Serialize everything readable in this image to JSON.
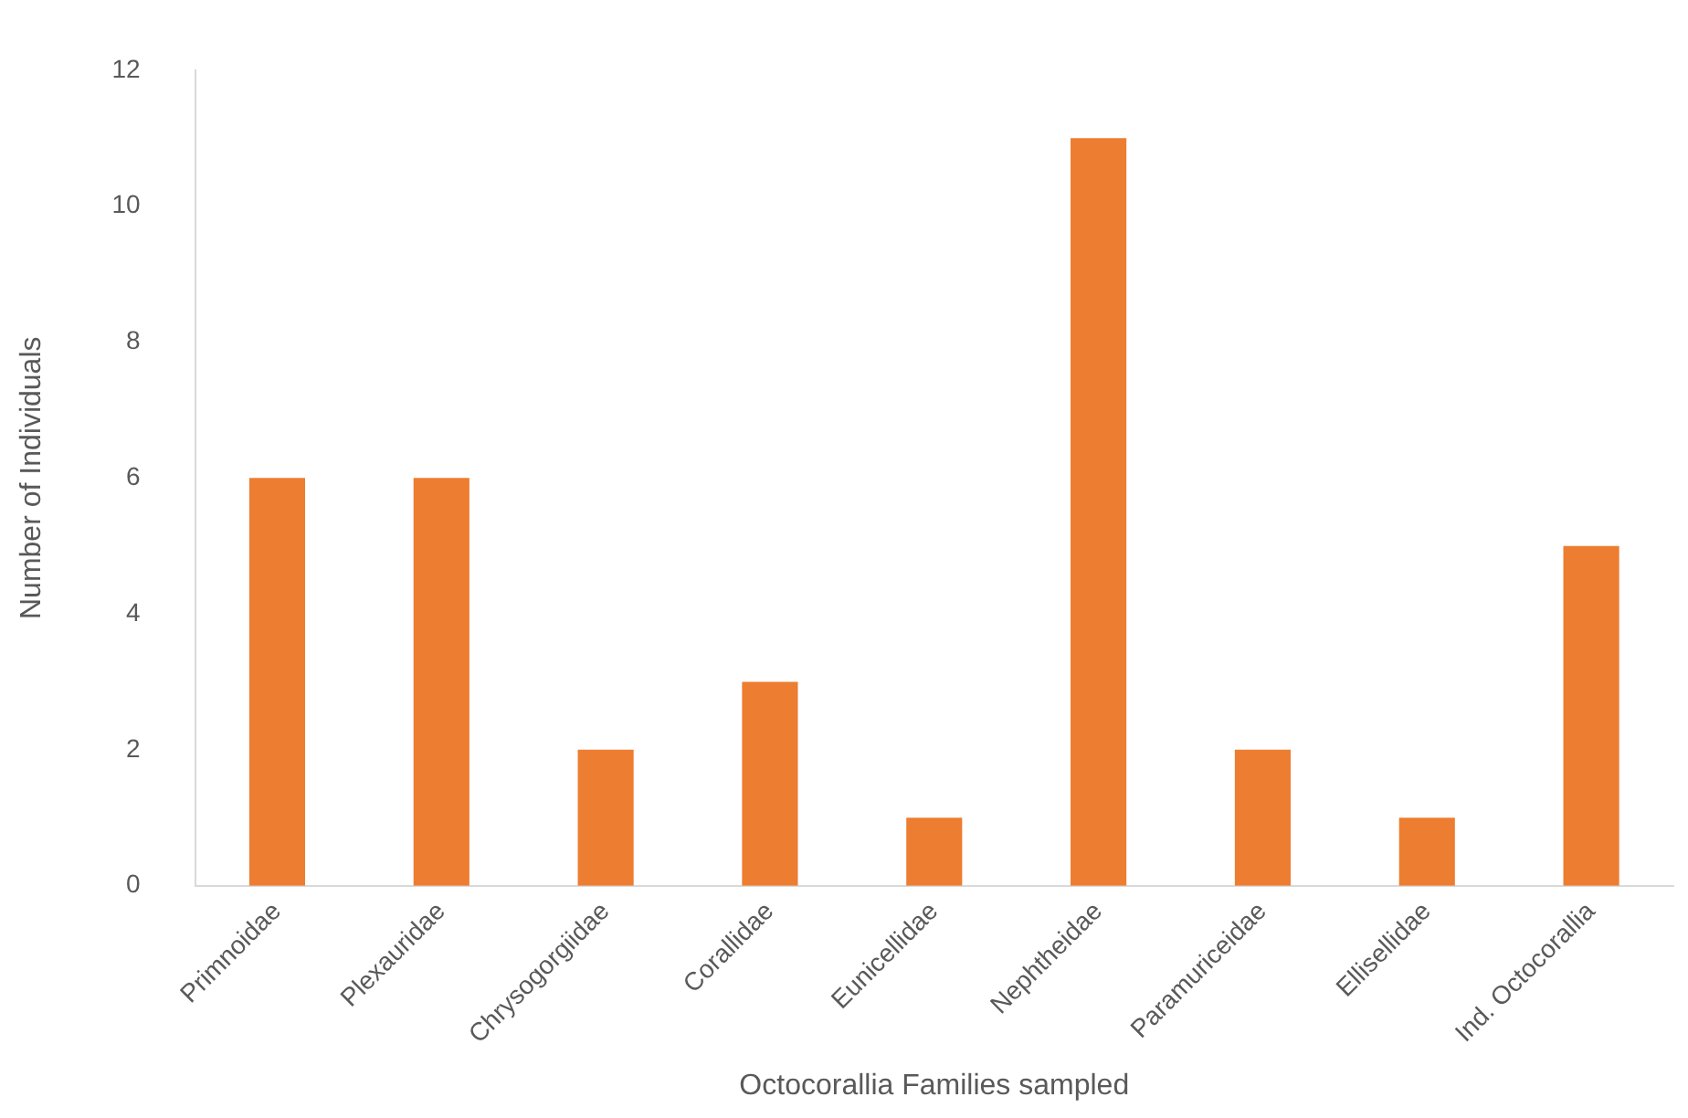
{
  "chart_data": {
    "type": "bar",
    "xlabel": "Octocorallia Families sampled",
    "ylabel": "Number of Individuals",
    "categories": [
      "Primnoidae",
      "Plexauridae",
      "Chrysogorgiidae",
      "Corallidae",
      "Eunicellidae",
      "Nephtheidae",
      "Paramuriceidae",
      "Ellisellidae",
      "Ind. Octocorallia"
    ],
    "values": [
      6,
      6,
      2,
      3,
      1,
      11,
      2,
      1,
      5
    ],
    "color": "#ed7d31",
    "ylim": [
      0,
      12
    ],
    "yticks": [
      0,
      2,
      4,
      6,
      8,
      10,
      12
    ],
    "grid": false,
    "legend": false
  }
}
